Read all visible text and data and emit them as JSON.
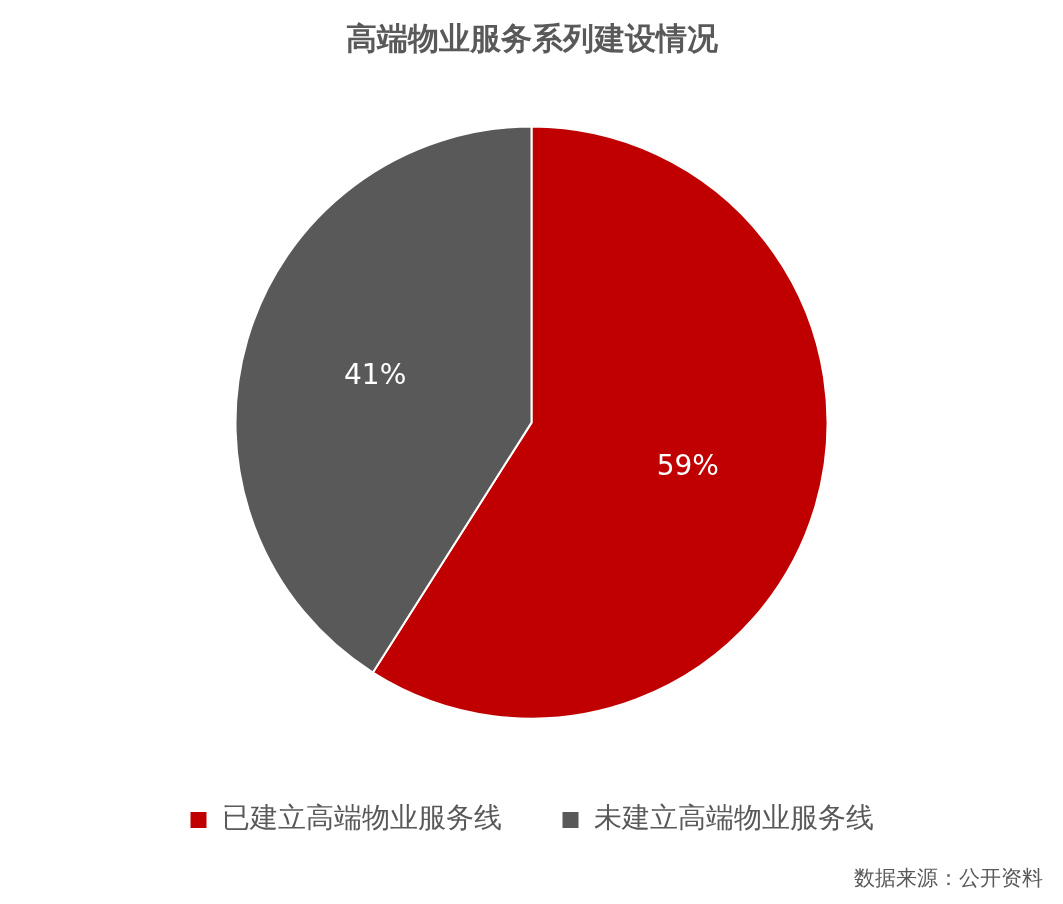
{
  "chart_data": {
    "type": "pie",
    "title": "高端物业服务系列建设情况",
    "categories": [
      "已建立高端物业服务线",
      "未建立高端物业服务线"
    ],
    "values": [
      59,
      41
    ],
    "colors": [
      "#c00000",
      "#595959"
    ],
    "value_labels": [
      "59%",
      "41%"
    ],
    "legend": "bottom",
    "annotations": [
      "数据来源：公开资料"
    ]
  }
}
